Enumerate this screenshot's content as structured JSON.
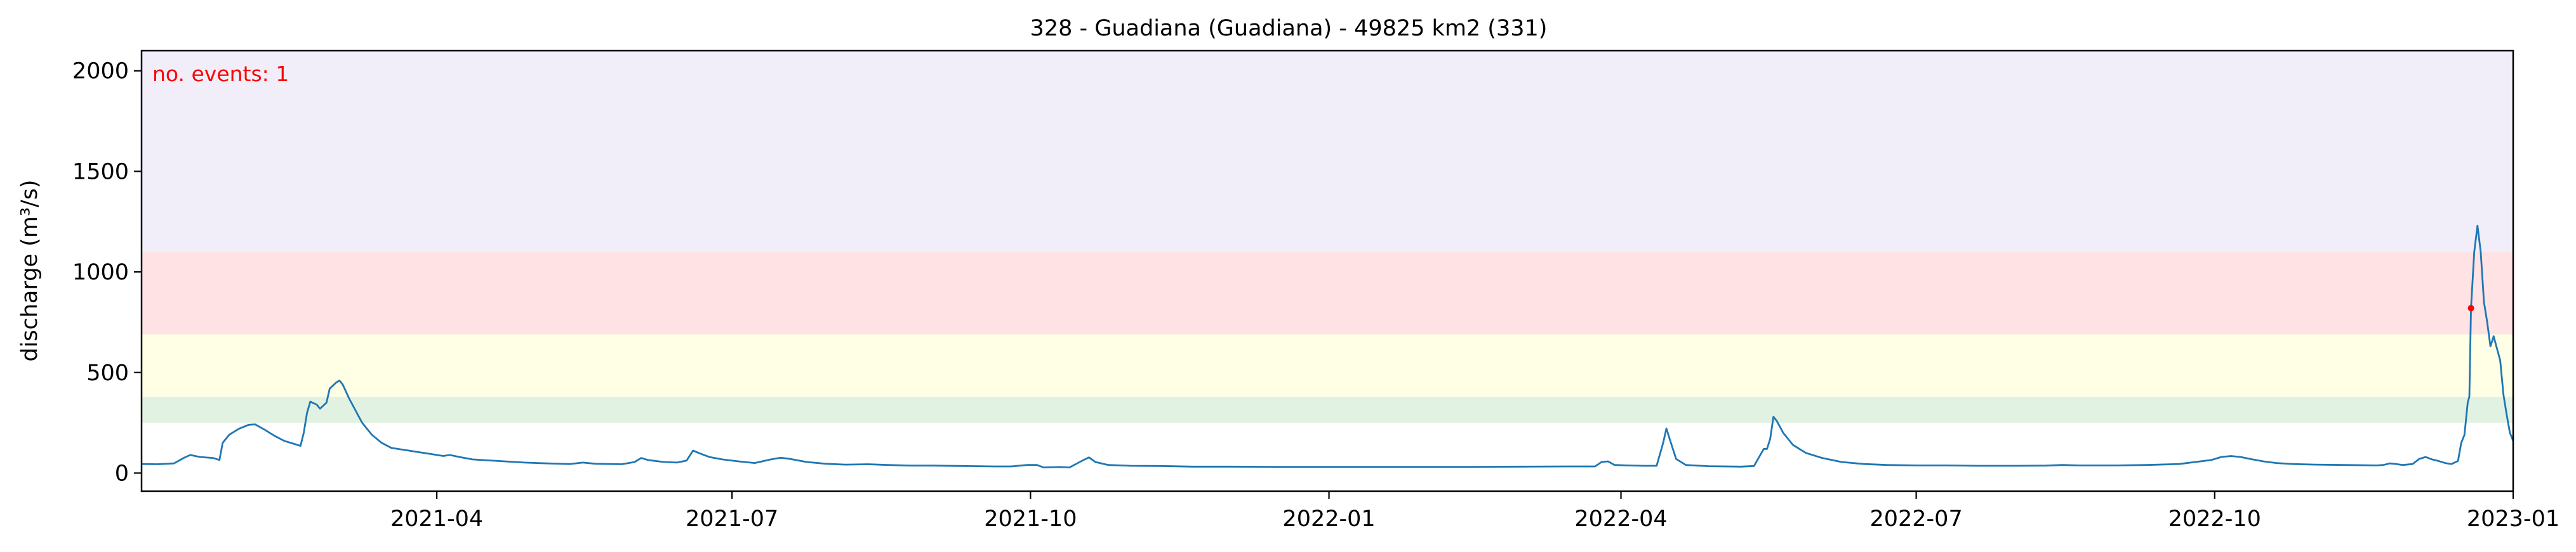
{
  "chart_data": {
    "type": "line",
    "title": "328 - Guadiana (Guadiana) - 49825 km2 (331)",
    "xlabel": "",
    "ylabel": "discharge (m³/s)",
    "annotation": "no. events: 1",
    "xlim": [
      "2020-12-31",
      "2023-01-01"
    ],
    "ylim": [
      -90,
      2100
    ],
    "yticks": [
      0,
      500,
      1000,
      1500,
      2000
    ],
    "xticks": [
      {
        "date": "2021-04-01",
        "label": "2021-04"
      },
      {
        "date": "2021-07-01",
        "label": "2021-07"
      },
      {
        "date": "2021-10-01",
        "label": "2021-10"
      },
      {
        "date": "2022-01-01",
        "label": "2022-01"
      },
      {
        "date": "2022-04-01",
        "label": "2022-04"
      },
      {
        "date": "2022-07-01",
        "label": "2022-07"
      },
      {
        "date": "2022-10-01",
        "label": "2022-10"
      },
      {
        "date": "2023-01-01",
        "label": "2023-01"
      }
    ],
    "threshold_bands": [
      {
        "name": "band-1",
        "from": 250,
        "to": 380,
        "color": "#e2f2e2"
      },
      {
        "name": "band-2",
        "from": 380,
        "to": 690,
        "color": "#ffffe5"
      },
      {
        "name": "band-3",
        "from": 690,
        "to": 1100,
        "color": "#ffe2e4"
      },
      {
        "name": "band-4",
        "from": 1100,
        "to": 2100,
        "color": "#f1eefa"
      }
    ],
    "series": [
      {
        "name": "discharge",
        "color": "#1f77b4",
        "points": [
          [
            "2020-12-31",
            45
          ],
          [
            "2021-01-05",
            44
          ],
          [
            "2021-01-10",
            48
          ],
          [
            "2021-01-13",
            75
          ],
          [
            "2021-01-15",
            90
          ],
          [
            "2021-01-18",
            80
          ],
          [
            "2021-01-22",
            75
          ],
          [
            "2021-01-24",
            65
          ],
          [
            "2021-01-25",
            150
          ],
          [
            "2021-01-27",
            190
          ],
          [
            "2021-01-30",
            220
          ],
          [
            "2021-02-02",
            240
          ],
          [
            "2021-02-04",
            242
          ],
          [
            "2021-02-07",
            215
          ],
          [
            "2021-02-10",
            185
          ],
          [
            "2021-02-13",
            160
          ],
          [
            "2021-02-16",
            145
          ],
          [
            "2021-02-18",
            135
          ],
          [
            "2021-02-19",
            200
          ],
          [
            "2021-02-20",
            300
          ],
          [
            "2021-02-21",
            355
          ],
          [
            "2021-02-23",
            340
          ],
          [
            "2021-02-24",
            320
          ],
          [
            "2021-02-26",
            350
          ],
          [
            "2021-02-27",
            420
          ],
          [
            "2021-03-01",
            450
          ],
          [
            "2021-03-02",
            460
          ],
          [
            "2021-03-03",
            440
          ],
          [
            "2021-03-05",
            370
          ],
          [
            "2021-03-07",
            310
          ],
          [
            "2021-03-09",
            250
          ],
          [
            "2021-03-12",
            190
          ],
          [
            "2021-03-15",
            150
          ],
          [
            "2021-03-18",
            125
          ],
          [
            "2021-03-22",
            115
          ],
          [
            "2021-03-26",
            105
          ],
          [
            "2021-03-30",
            95
          ],
          [
            "2021-04-03",
            85
          ],
          [
            "2021-04-05",
            90
          ],
          [
            "2021-04-08",
            80
          ],
          [
            "2021-04-12",
            68
          ],
          [
            "2021-04-20",
            60
          ],
          [
            "2021-04-28",
            52
          ],
          [
            "2021-05-05",
            48
          ],
          [
            "2021-05-12",
            45
          ],
          [
            "2021-05-16",
            52
          ],
          [
            "2021-05-20",
            46
          ],
          [
            "2021-05-28",
            44
          ],
          [
            "2021-06-01",
            55
          ],
          [
            "2021-06-03",
            75
          ],
          [
            "2021-06-05",
            65
          ],
          [
            "2021-06-10",
            55
          ],
          [
            "2021-06-14",
            52
          ],
          [
            "2021-06-17",
            62
          ],
          [
            "2021-06-19",
            112
          ],
          [
            "2021-06-21",
            98
          ],
          [
            "2021-06-24",
            80
          ],
          [
            "2021-06-28",
            68
          ],
          [
            "2021-07-03",
            58
          ],
          [
            "2021-07-08",
            50
          ],
          [
            "2021-07-13",
            68
          ],
          [
            "2021-07-16",
            76
          ],
          [
            "2021-07-19",
            70
          ],
          [
            "2021-07-24",
            55
          ],
          [
            "2021-07-30",
            46
          ],
          [
            "2021-08-05",
            42
          ],
          [
            "2021-08-12",
            44
          ],
          [
            "2021-08-18",
            40
          ],
          [
            "2021-08-25",
            37
          ],
          [
            "2021-09-01",
            37
          ],
          [
            "2021-09-10",
            35
          ],
          [
            "2021-09-20",
            33
          ],
          [
            "2021-09-25",
            33
          ],
          [
            "2021-09-30",
            40
          ],
          [
            "2021-10-03",
            40
          ],
          [
            "2021-10-05",
            28
          ],
          [
            "2021-10-10",
            30
          ],
          [
            "2021-10-13",
            28
          ],
          [
            "2021-10-17",
            62
          ],
          [
            "2021-10-19",
            78
          ],
          [
            "2021-10-21",
            55
          ],
          [
            "2021-10-25",
            40
          ],
          [
            "2021-11-01",
            36
          ],
          [
            "2021-11-10",
            35
          ],
          [
            "2021-11-20",
            32
          ],
          [
            "2021-12-01",
            32
          ],
          [
            "2021-12-15",
            31
          ],
          [
            "2021-12-31",
            31
          ],
          [
            "2022-01-10",
            31
          ],
          [
            "2022-01-20",
            31
          ],
          [
            "2022-02-01",
            31
          ],
          [
            "2022-02-15",
            31
          ],
          [
            "2022-03-01",
            32
          ],
          [
            "2022-03-15",
            33
          ],
          [
            "2022-03-24",
            33
          ],
          [
            "2022-03-26",
            55
          ],
          [
            "2022-03-28",
            58
          ],
          [
            "2022-03-30",
            40
          ],
          [
            "2022-04-03",
            38
          ],
          [
            "2022-04-08",
            36
          ],
          [
            "2022-04-12",
            36
          ],
          [
            "2022-04-14",
            150
          ],
          [
            "2022-04-15",
            222
          ],
          [
            "2022-04-16",
            170
          ],
          [
            "2022-04-18",
            70
          ],
          [
            "2022-04-21",
            40
          ],
          [
            "2022-04-28",
            34
          ],
          [
            "2022-05-08",
            32
          ],
          [
            "2022-05-12",
            35
          ],
          [
            "2022-05-15",
            120
          ],
          [
            "2022-05-16",
            120
          ],
          [
            "2022-05-17",
            170
          ],
          [
            "2022-05-18",
            280
          ],
          [
            "2022-05-19",
            260
          ],
          [
            "2022-05-21",
            200
          ],
          [
            "2022-05-24",
            140
          ],
          [
            "2022-05-28",
            100
          ],
          [
            "2022-06-02",
            75
          ],
          [
            "2022-06-08",
            55
          ],
          [
            "2022-06-15",
            45
          ],
          [
            "2022-06-22",
            40
          ],
          [
            "2022-07-01",
            38
          ],
          [
            "2022-07-10",
            38
          ],
          [
            "2022-07-20",
            36
          ],
          [
            "2022-08-01",
            36
          ],
          [
            "2022-08-10",
            37
          ],
          [
            "2022-08-15",
            40
          ],
          [
            "2022-08-20",
            38
          ],
          [
            "2022-09-01",
            38
          ],
          [
            "2022-09-10",
            40
          ],
          [
            "2022-09-20",
            45
          ],
          [
            "2022-09-25",
            55
          ],
          [
            "2022-09-30",
            65
          ],
          [
            "2022-10-03",
            80
          ],
          [
            "2022-10-06",
            85
          ],
          [
            "2022-10-09",
            80
          ],
          [
            "2022-10-12",
            70
          ],
          [
            "2022-10-16",
            58
          ],
          [
            "2022-10-20",
            50
          ],
          [
            "2022-10-25",
            45
          ],
          [
            "2022-11-01",
            42
          ],
          [
            "2022-11-10",
            40
          ],
          [
            "2022-11-20",
            38
          ],
          [
            "2022-11-22",
            40
          ],
          [
            "2022-11-24",
            48
          ],
          [
            "2022-11-26",
            45
          ],
          [
            "2022-11-28",
            40
          ],
          [
            "2022-12-01",
            45
          ],
          [
            "2022-12-03",
            70
          ],
          [
            "2022-12-05",
            80
          ],
          [
            "2022-12-07",
            68
          ],
          [
            "2022-12-09",
            60
          ],
          [
            "2022-12-11",
            50
          ],
          [
            "2022-12-13",
            45
          ],
          [
            "2022-12-15",
            60
          ],
          [
            "2022-12-16",
            150
          ],
          [
            "2022-12-17",
            190
          ],
          [
            "2022-12-18",
            350
          ],
          [
            "2022-12-18.5",
            380
          ],
          [
            "2022-12-19",
            820
          ],
          [
            "2022-12-20",
            1100
          ],
          [
            "2022-12-21",
            1230
          ],
          [
            "2022-12-22",
            1100
          ],
          [
            "2022-12-23",
            850
          ],
          [
            "2022-12-24",
            750
          ],
          [
            "2022-12-25",
            630
          ],
          [
            "2022-12-26",
            680
          ],
          [
            "2022-12-27",
            620
          ],
          [
            "2022-12-28",
            560
          ],
          [
            "2022-12-29",
            390
          ],
          [
            "2022-12-30",
            290
          ],
          [
            "2022-12-31",
            200
          ],
          [
            "2023-01-01",
            160
          ]
        ]
      }
    ],
    "events": [
      {
        "date": "2022-12-19",
        "value": 820,
        "color": "#ff0000"
      }
    ]
  }
}
